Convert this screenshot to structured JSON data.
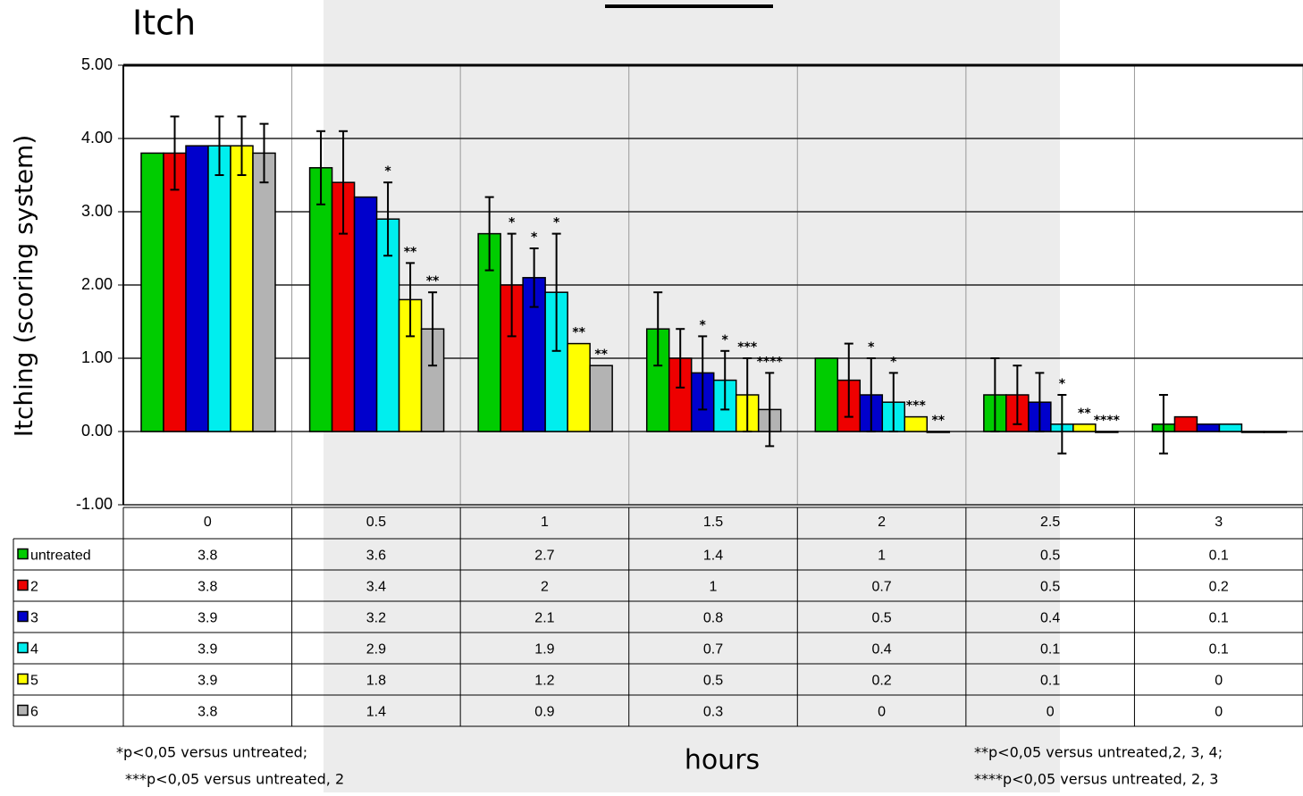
{
  "chart_data": {
    "type": "bar",
    "title": "Itch",
    "y_label": "Itching (scoring system)",
    "x_label": "hours",
    "categories": [
      "0",
      "0.5",
      "1",
      "1.5",
      "2",
      "2.5",
      "3"
    ],
    "ylim": [
      -1,
      5
    ],
    "yticks": [
      {
        "value": -1,
        "label": "-1.00"
      },
      {
        "value": 0,
        "label": "0.00"
      },
      {
        "value": 1,
        "label": "1.00"
      },
      {
        "value": 2,
        "label": "2.00"
      },
      {
        "value": 3,
        "label": "3.00"
      },
      {
        "value": 4,
        "label": "4.00"
      },
      {
        "value": 5,
        "label": "5.00"
      }
    ],
    "grid": true,
    "series": [
      {
        "name": "untreated",
        "color": "#00cc00",
        "values": [
          3.8,
          3.6,
          2.7,
          1.4,
          1,
          0.5,
          0.1
        ],
        "errors": [
          null,
          0.5,
          0.5,
          0.5,
          null,
          0.5,
          0.4
        ],
        "significance": [
          null,
          null,
          null,
          null,
          null,
          null,
          null
        ]
      },
      {
        "name": "2",
        "color": "#ee0000",
        "values": [
          3.8,
          3.4,
          2,
          1,
          0.7,
          0.5,
          0.2
        ],
        "errors": [
          0.5,
          0.7,
          0.7,
          0.4,
          0.5,
          0.4,
          null
        ],
        "significance": [
          null,
          null,
          "*",
          null,
          null,
          null,
          null
        ]
      },
      {
        "name": "3",
        "color": "#0000cc",
        "values": [
          3.9,
          3.2,
          2.1,
          0.8,
          0.5,
          0.4,
          0.1
        ],
        "errors": [
          null,
          null,
          0.4,
          0.5,
          0.5,
          0.4,
          null
        ],
        "significance": [
          null,
          null,
          "*",
          "*",
          "*",
          null,
          null
        ]
      },
      {
        "name": "4",
        "color": "#00eeee",
        "values": [
          3.9,
          2.9,
          1.9,
          0.7,
          0.4,
          0.1,
          0.1
        ],
        "errors": [
          0.4,
          0.5,
          0.8,
          0.4,
          0.4,
          0.4,
          null
        ],
        "significance": [
          null,
          "*",
          "*",
          "*",
          "*",
          "*",
          null
        ]
      },
      {
        "name": "5",
        "color": "#ffff00",
        "values": [
          3.9,
          1.8,
          1.2,
          0.5,
          0.2,
          0.1,
          0
        ],
        "errors": [
          0.4,
          0.5,
          null,
          0.5,
          null,
          null,
          null
        ],
        "significance": [
          null,
          "**",
          "**",
          "***",
          "***",
          "**",
          null
        ]
      },
      {
        "name": "6",
        "color": "#b3b3b3",
        "values": [
          3.8,
          1.4,
          0.9,
          0.3,
          0,
          0,
          0
        ],
        "errors": [
          0.4,
          0.5,
          null,
          0.5,
          null,
          null,
          null
        ],
        "significance": [
          null,
          "**",
          "**",
          "****",
          "**",
          "****",
          null
        ]
      }
    ],
    "footnotes": [
      "*p<0,05 versus untreated;",
      "***p<0,05 versus untreated, 2",
      "**p<0,05 versus untreated,2, 3, 4;",
      "****p<0,05 versus untreated, 2, 3"
    ]
  }
}
